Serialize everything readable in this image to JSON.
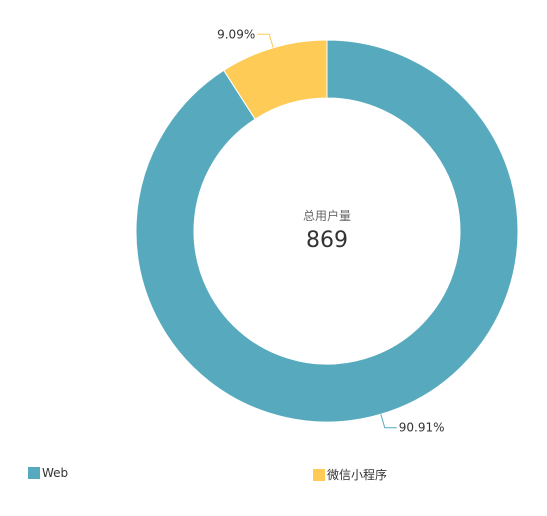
{
  "chart_data": {
    "type": "pie",
    "center": {
      "title": "总用户量",
      "value": "869"
    },
    "slices": [
      {
        "name": "Web",
        "value": 790,
        "percent_label": "90.91%",
        "color": "#57aabd"
      },
      {
        "name": "微信小程序",
        "value": 79,
        "percent_label": "9.09%",
        "color": "#fdcb56"
      }
    ],
    "legend": {
      "placement": "bottom",
      "items": [
        "Web",
        "微信小程序"
      ]
    }
  }
}
